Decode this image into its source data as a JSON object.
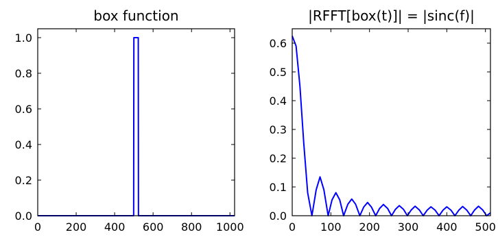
{
  "chart_data": [
    {
      "type": "line",
      "title": "box function",
      "xlabel": "",
      "ylabel": "",
      "xlim": [
        0,
        1024
      ],
      "ylim": [
        0.0,
        1.05
      ],
      "grid": false,
      "xticks": [
        0,
        200,
        400,
        600,
        800,
        1000
      ],
      "yticks": [
        0.0,
        0.2,
        0.4,
        0.6,
        0.8,
        1.0
      ],
      "xtick_labels": [
        "0",
        "200",
        "400",
        "600",
        "800",
        "1000"
      ],
      "ytick_labels": [
        "0.0",
        "0.2",
        "0.4",
        "0.6",
        "0.8",
        "1.0"
      ],
      "series": [
        {
          "color": "#0000ff",
          "x": [
            0,
            499,
            500,
            523,
            524,
            1023
          ],
          "y": [
            0,
            0,
            1,
            1,
            0,
            0
          ]
        }
      ]
    },
    {
      "type": "line",
      "title": "|RFFT[box(t)]| = |sinc(f)|",
      "xlabel": "",
      "ylabel": "",
      "xlim": [
        0,
        513
      ],
      "ylim": [
        0.0,
        0.65
      ],
      "grid": false,
      "xticks": [
        0,
        100,
        200,
        300,
        400,
        500
      ],
      "yticks": [
        0.0,
        0.1,
        0.2,
        0.3,
        0.4,
        0.5,
        0.6
      ],
      "xtick_labels": [
        "0",
        "100",
        "200",
        "300",
        "400",
        "500"
      ],
      "ytick_labels": [
        "0.0",
        "0.1",
        "0.2",
        "0.3",
        "0.4",
        "0.5",
        "0.6"
      ],
      "series": [
        {
          "color": "#0000ff",
          "x": [
            0,
            10,
            20,
            30,
            40,
            51,
            62,
            72,
            82,
            93,
            103,
            113,
            123,
            133,
            144,
            154,
            164,
            175,
            185,
            195,
            205,
            216,
            226,
            236,
            247,
            257,
            267,
            277,
            288,
            298,
            308,
            318,
            329,
            339,
            349,
            359,
            370,
            380,
            390,
            400,
            411,
            421,
            431,
            441,
            452,
            462,
            472,
            482,
            493,
            503,
            513
          ],
          "y": [
            0.625,
            0.59,
            0.45,
            0.25,
            0.08,
            0.0,
            0.09,
            0.135,
            0.09,
            0.0,
            0.055,
            0.08,
            0.055,
            0.0,
            0.04,
            0.058,
            0.04,
            0.0,
            0.03,
            0.046,
            0.03,
            0.0,
            0.025,
            0.039,
            0.025,
            0.0,
            0.022,
            0.035,
            0.022,
            0.0,
            0.02,
            0.033,
            0.02,
            0.0,
            0.019,
            0.031,
            0.019,
            0.0,
            0.019,
            0.031,
            0.019,
            0.0,
            0.019,
            0.032,
            0.019,
            0.0,
            0.02,
            0.033,
            0.02,
            0.0,
            0.01
          ]
        }
      ]
    }
  ]
}
